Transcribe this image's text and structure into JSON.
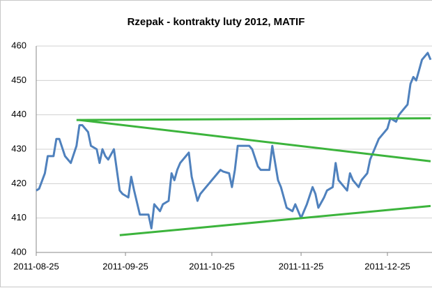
{
  "chart_data": {
    "type": "line",
    "title": "Rzepak - kontrakty luty 2012, MATIF",
    "x": [
      "2011-08-25",
      "2011-08-26",
      "2011-08-28",
      "2011-08-29",
      "2011-08-31",
      "2011-09-01",
      "2011-09-02",
      "2011-09-04",
      "2011-09-06",
      "2011-09-08",
      "2011-09-09",
      "2011-09-10",
      "2011-09-12",
      "2011-09-13",
      "2011-09-15",
      "2011-09-16",
      "2011-09-17",
      "2011-09-18",
      "2011-09-19",
      "2011-09-21",
      "2011-09-23",
      "2011-09-24",
      "2011-09-26",
      "2011-09-27",
      "2011-09-28",
      "2011-09-30",
      "2011-10-02",
      "2011-10-03",
      "2011-10-04",
      "2011-10-05",
      "2011-10-07",
      "2011-10-08",
      "2011-10-10",
      "2011-10-11",
      "2011-10-12",
      "2011-10-13",
      "2011-10-14",
      "2011-10-16",
      "2011-10-17",
      "2011-10-18",
      "2011-10-20",
      "2011-10-21",
      "2011-10-22",
      "2011-10-24",
      "2011-10-25",
      "2011-10-26",
      "2011-10-28",
      "2011-10-29",
      "2011-10-31",
      "2011-11-01",
      "2011-11-02",
      "2011-11-03",
      "2011-11-05",
      "2011-11-07",
      "2011-11-08",
      "2011-11-10",
      "2011-11-11",
      "2011-11-12",
      "2011-11-14",
      "2011-11-15",
      "2011-11-17",
      "2011-11-18",
      "2011-11-19",
      "2011-11-20",
      "2011-11-22",
      "2011-11-23",
      "2011-11-25",
      "2011-11-26",
      "2011-11-27",
      "2011-11-29",
      "2011-11-30",
      "2011-12-01",
      "2011-12-03",
      "2011-12-04",
      "2011-12-06",
      "2011-12-07",
      "2011-12-08",
      "2011-12-10",
      "2011-12-11",
      "2011-12-12",
      "2011-12-13",
      "2011-12-15",
      "2011-12-16",
      "2011-12-18",
      "2011-12-19",
      "2011-12-21",
      "2011-12-22",
      "2011-12-24",
      "2011-12-25",
      "2011-12-26",
      "2011-12-28",
      "2011-12-29",
      "2011-12-30",
      "2012-01-01",
      "2012-01-02",
      "2012-01-03",
      "2012-01-04",
      "2012-01-05",
      "2012-01-06",
      "2012-01-08",
      "2012-01-09"
    ],
    "series": [
      {
        "color": "#4f81bd",
        "values": [
          418,
          418.5,
          423,
          428,
          428,
          433,
          433,
          428,
          426,
          431,
          437,
          437,
          435,
          431,
          430,
          426,
          430,
          428,
          427,
          430,
          418,
          417,
          416,
          422,
          418,
          411,
          411,
          411,
          407,
          414,
          412,
          414,
          415,
          423,
          421,
          424,
          426,
          428,
          429,
          422,
          415,
          417,
          418,
          420,
          421,
          422,
          424,
          423.5,
          423,
          419,
          424,
          431,
          431,
          431,
          430,
          425,
          424,
          424,
          424,
          431,
          421,
          419,
          416,
          413,
          412,
          414,
          410,
          412,
          414,
          419,
          417,
          413,
          416,
          418,
          419,
          426,
          421,
          419,
          418,
          423,
          421,
          419,
          421,
          423,
          427,
          431,
          433,
          435,
          436,
          439,
          438,
          440,
          441,
          443,
          449,
          451,
          450,
          453,
          456,
          458,
          456
        ]
      }
    ],
    "lines": [
      {
        "color": "#3cb43c",
        "x": [
          "2011-09-08",
          "2012-01-09"
        ],
        "values": [
          438.5,
          439
        ]
      },
      {
        "color": "#3cb43c",
        "x": [
          "2011-09-09",
          "2012-01-09"
        ],
        "values": [
          438.5,
          426.5
        ]
      },
      {
        "color": "#3cb43c",
        "x": [
          "2011-09-23",
          "2012-01-09"
        ],
        "values": [
          405,
          413.5
        ]
      }
    ],
    "xlim": [
      "2011-08-25",
      "2012-01-09"
    ],
    "xticks": [
      "2011-08-25",
      "2011-09-25",
      "2011-10-25",
      "2011-11-25",
      "2011-12-25"
    ],
    "ylim": [
      400,
      460
    ],
    "yticks": [
      400,
      410,
      420,
      430,
      440,
      450,
      460
    ],
    "grid": true
  }
}
